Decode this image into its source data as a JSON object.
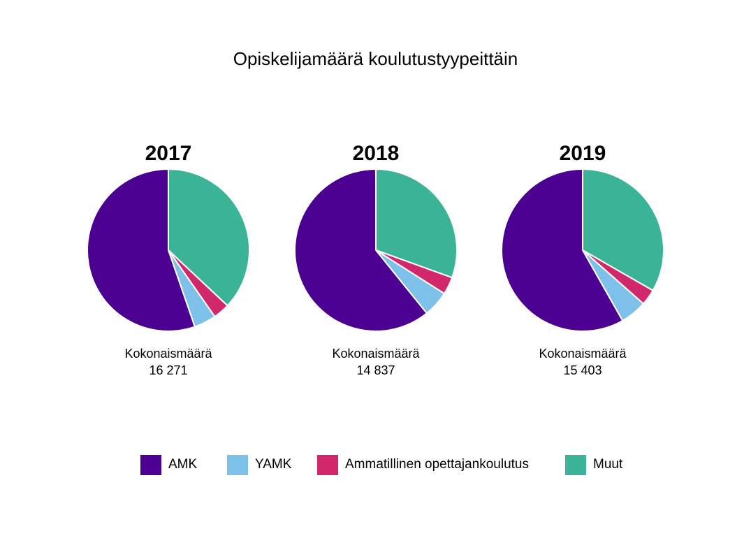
{
  "title": "Opiskelijamäärä koulutustyypeittäin",
  "colors": {
    "AMK": "#4b0091",
    "YAMK": "#7dc1ea",
    "Ammatillinen opettajankoulutus": "#d0286b",
    "Muut": "#3bb397"
  },
  "legend": [
    {
      "label": "AMK",
      "color": "#4b0091"
    },
    {
      "label": "YAMK",
      "color": "#7dc1ea"
    },
    {
      "label": "Ammatillinen opettajankoulutus",
      "color": "#d0286b"
    },
    {
      "label": "Muut",
      "color": "#3bb397"
    }
  ],
  "chart_data": [
    {
      "type": "pie",
      "title": "2017",
      "total_label": "Kokonaismäärä",
      "total_value": "16 271",
      "categories": [
        "Muut",
        "Ammatillinen opettajankoulutus",
        "YAMK",
        "AMK"
      ],
      "values": [
        37.0,
        3.3,
        4.4,
        55.3
      ]
    },
    {
      "type": "pie",
      "title": "2018",
      "total_label": "Kokonaismäärä",
      "total_value": "14 837",
      "categories": [
        "Muut",
        "Ammatillinen opettajankoulutus",
        "YAMK",
        "AMK"
      ],
      "values": [
        30.5,
        3.5,
        5.2,
        60.8
      ]
    },
    {
      "type": "pie",
      "title": "2019",
      "total_label": "Kokonaismäärä",
      "total_value": "15 403",
      "categories": [
        "Muut",
        "Ammatillinen opettajankoulutus",
        "YAMK",
        "AMK"
      ],
      "values": [
        33.3,
        3.2,
        5.3,
        58.2
      ]
    }
  ]
}
